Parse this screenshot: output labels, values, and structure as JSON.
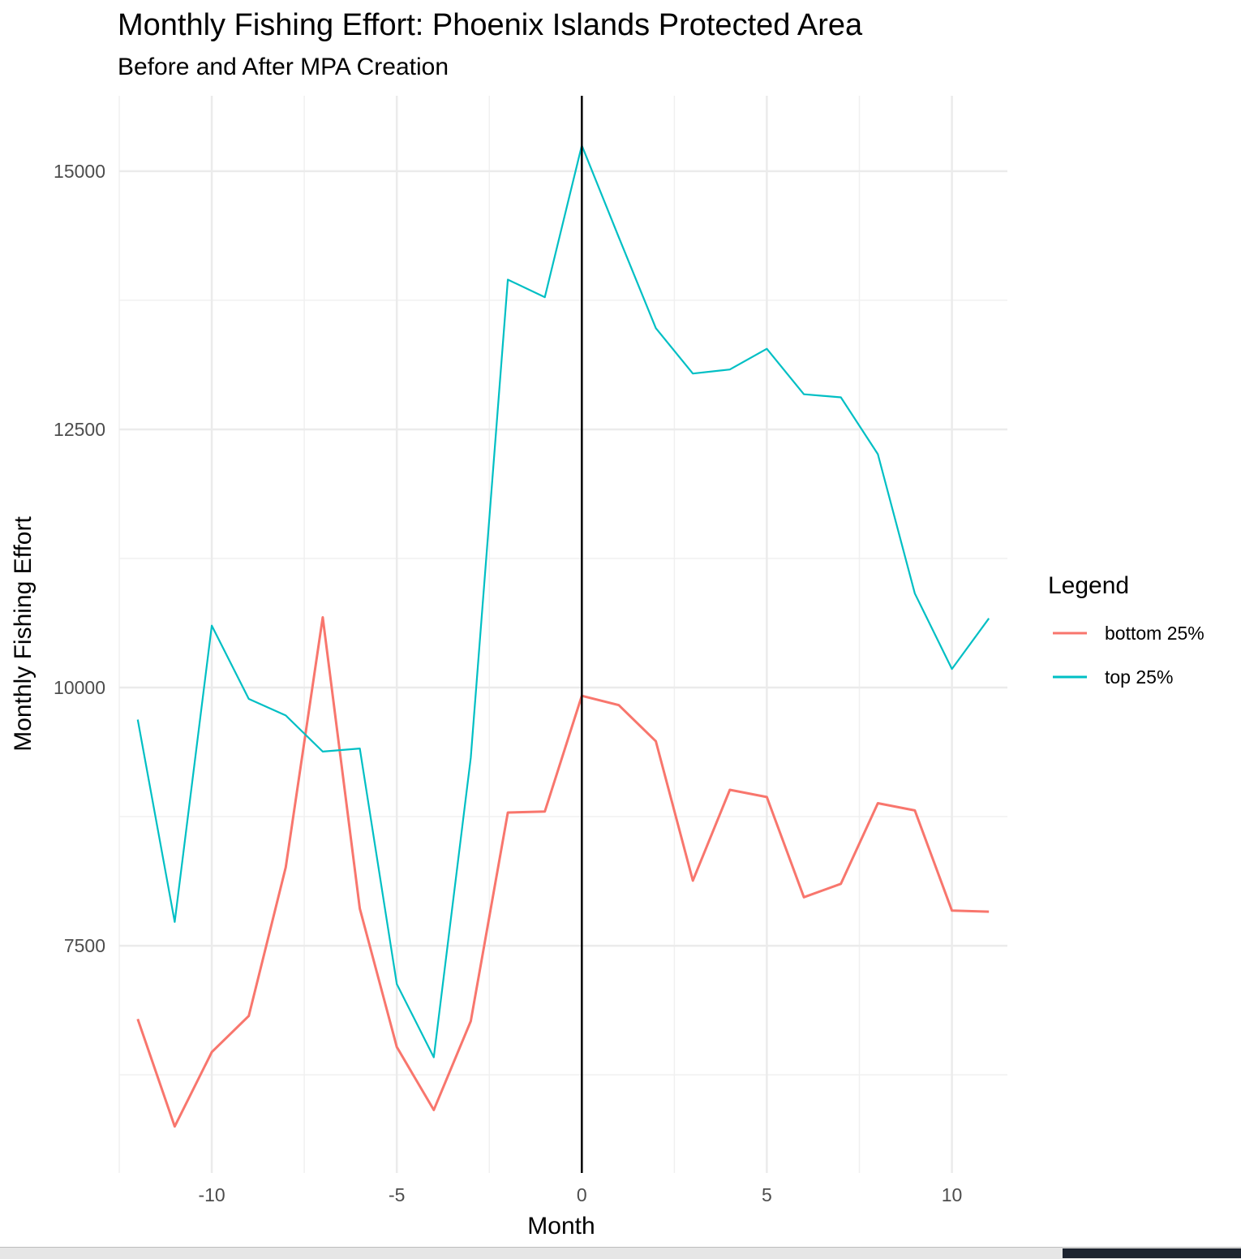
{
  "chart_data": {
    "type": "line",
    "title": "Monthly Fishing Effort: Phoenix Islands Protected Area",
    "subtitle": "Before and After MPA Creation",
    "xlabel": "Month",
    "ylabel": "Monthly Fishing Effort",
    "xlim": [
      -12.5,
      11.5
    ],
    "ylim": [
      5300,
      15730
    ],
    "x_ticks": [
      -10,
      -5,
      0,
      5,
      10
    ],
    "x_tick_labels": [
      "-10",
      "-5",
      "0",
      "5",
      "10"
    ],
    "y_ticks": [
      7500,
      10000,
      12500,
      15000
    ],
    "y_tick_labels": [
      "7500",
      "10000",
      "12500",
      "15000"
    ],
    "x_minor_gridlines": [
      -12.5,
      -7.5,
      -2.5,
      2.5,
      7.5
    ],
    "y_minor_gridlines": [
      6250,
      8750,
      11250,
      13750
    ],
    "grid": true,
    "vline_x": 0,
    "legend": {
      "title": "Legend",
      "position": "right"
    },
    "x": [
      -12,
      -11,
      -10,
      -9,
      -8,
      -7,
      -6,
      -5,
      -4,
      -3,
      -2,
      -1,
      0,
      1,
      2,
      3,
      4,
      5,
      6,
      7,
      8,
      9,
      10,
      11
    ],
    "series": [
      {
        "name": "bottom 25%",
        "color": "#F8766D",
        "values": [
          6790,
          5750,
          6470,
          6820,
          8260,
          10680,
          7860,
          6520,
          5910,
          6770,
          8790,
          8800,
          9920,
          9830,
          9480,
          8130,
          9010,
          8940,
          7970,
          8100,
          8880,
          8810,
          7840,
          7830
        ]
      },
      {
        "name": "top 25%",
        "color": "#00BFC4",
        "values": [
          9690,
          7730,
          10600,
          9890,
          9730,
          9380,
          9410,
          7130,
          6420,
          9320,
          13950,
          13780,
          15250,
          14360,
          13480,
          13040,
          13080,
          13280,
          12840,
          12810,
          12260,
          10910,
          10180,
          10670
        ]
      }
    ]
  }
}
